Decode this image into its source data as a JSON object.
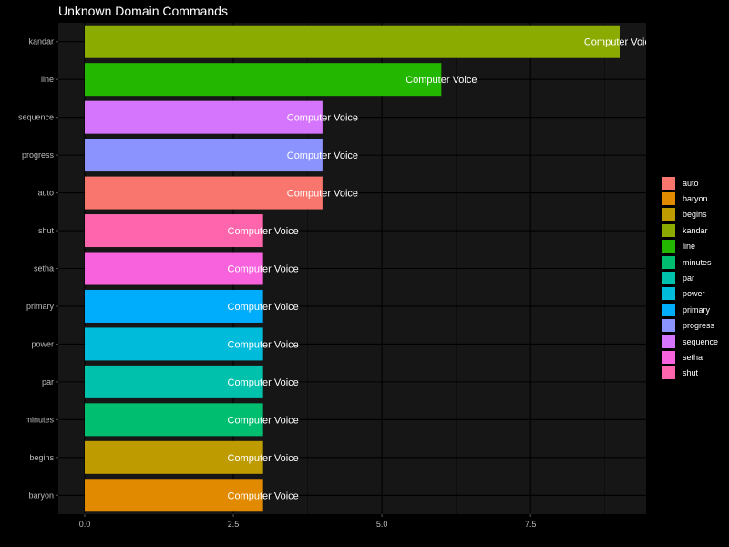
{
  "chart_data": {
    "type": "bar",
    "orientation": "horizontal",
    "title": "Unknown Domain Commands",
    "xlabel": "",
    "ylabel": "",
    "xlim": [
      0,
      9.5
    ],
    "x_ticks": [
      0,
      2.5,
      5,
      7.5
    ],
    "x_tick_labels": [
      "0.0",
      "2.5",
      "5.0",
      "7.5"
    ],
    "grid": true,
    "legend_position": "right",
    "categories": [
      "kandar",
      "line",
      "sequence",
      "progress",
      "auto",
      "shut",
      "setha",
      "primary",
      "power",
      "par",
      "minutes",
      "begins",
      "baryon"
    ],
    "values": [
      9,
      6,
      4,
      4,
      4,
      3,
      3,
      3,
      3,
      3,
      3,
      3,
      3
    ],
    "bar_labels": [
      "Computer Voice",
      "Computer Voice",
      "Computer Voice",
      "Computer Voice",
      "Computer Voice",
      "Computer Voice",
      "Computer Voice",
      "Computer Voice",
      "Computer Voice",
      "Computer Voice",
      "Computer Voice",
      "Computer Voice",
      "Computer Voice"
    ],
    "colors": {
      "auto": "#F8766D",
      "baryon": "#E18A00",
      "begins": "#BE9C00",
      "kandar": "#8CAB00",
      "line": "#24B700",
      "minutes": "#00BE70",
      "par": "#00C1AB",
      "power": "#00BBDA",
      "primary": "#00ACFC",
      "progress": "#8B93FF",
      "sequence": "#D575FE",
      "setha": "#F962DD",
      "shut": "#FF65AC"
    },
    "legend": [
      "auto",
      "baryon",
      "begins",
      "kandar",
      "line",
      "minutes",
      "par",
      "power",
      "primary",
      "progress",
      "sequence",
      "setha",
      "shut"
    ]
  },
  "theme": {
    "background": "#000000",
    "panel": "#161616",
    "grid_major": "#000000",
    "text": "#ffffff",
    "tick_text": "#bbbbbb"
  }
}
